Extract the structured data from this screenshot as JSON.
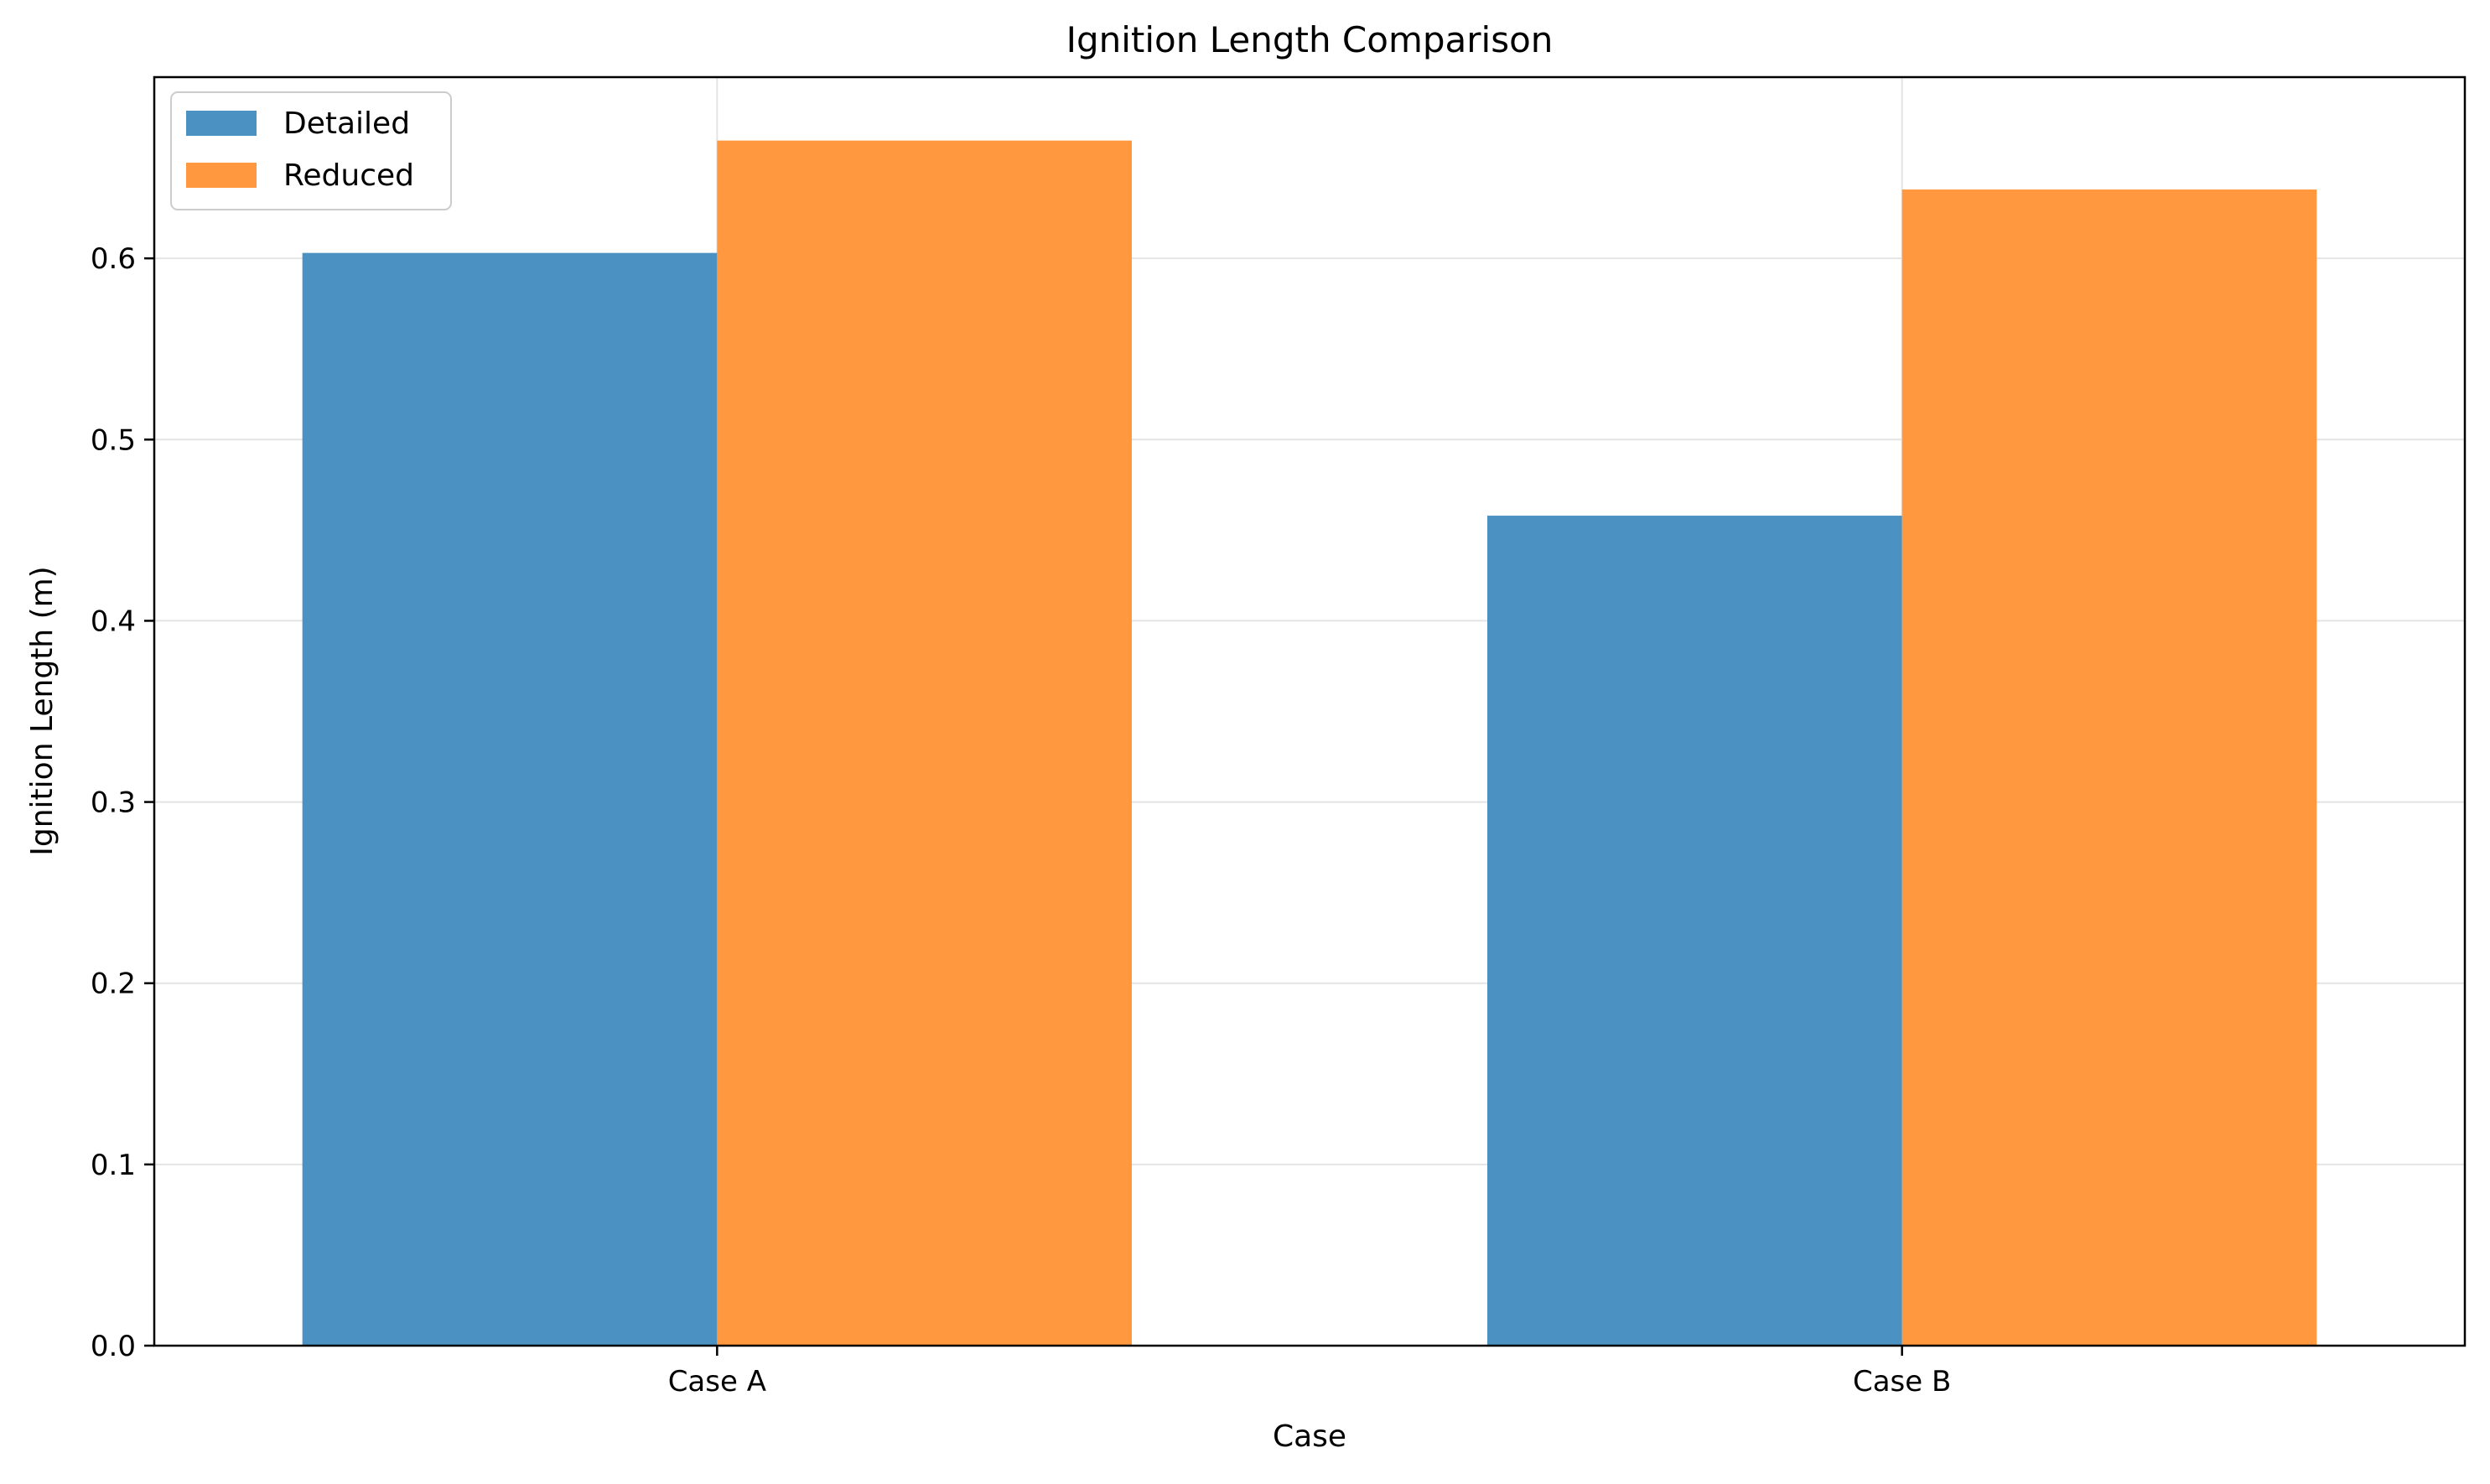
{
  "chart_data": {
    "type": "bar",
    "title": "Ignition Length Comparison",
    "xlabel": "Case",
    "ylabel": "Ignition Length (m)",
    "categories": [
      "Case A",
      "Case B"
    ],
    "series": [
      {
        "name": "Detailed",
        "values": [
          0.603,
          0.458
        ],
        "color": "#4b92c3"
      },
      {
        "name": "Reduced",
        "values": [
          0.665,
          0.638
        ],
        "color": "#ff983e"
      }
    ],
    "ylim": [
      0,
      0.7
    ],
    "yticks": [
      "0.0",
      "0.1",
      "0.2",
      "0.3",
      "0.4",
      "0.5",
      "0.6"
    ],
    "grid": true,
    "legend_position": "top-left"
  }
}
